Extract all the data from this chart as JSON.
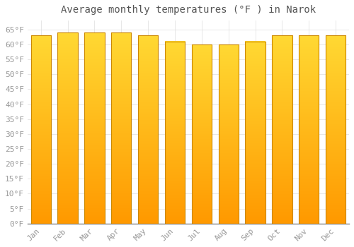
{
  "title": "Average monthly temperatures (°F ) in Narok",
  "months": [
    "Jan",
    "Feb",
    "Mar",
    "Apr",
    "May",
    "Jun",
    "Jul",
    "Aug",
    "Sep",
    "Oct",
    "Nov",
    "Dec"
  ],
  "values": [
    63,
    64,
    64,
    64,
    63,
    61,
    60,
    60,
    61,
    63,
    63,
    63
  ],
  "bar_color_main": "#FFA500",
  "bar_color_highlight": "#FFD700",
  "bar_edge_color": "#CC8800",
  "background_color": "#FFFFFF",
  "grid_color": "#DDDDDD",
  "ylim": [
    0,
    68
  ],
  "ytick_step": 5,
  "title_fontsize": 10,
  "tick_fontsize": 8,
  "tick_font_color": "#999999",
  "bar_width": 0.75
}
